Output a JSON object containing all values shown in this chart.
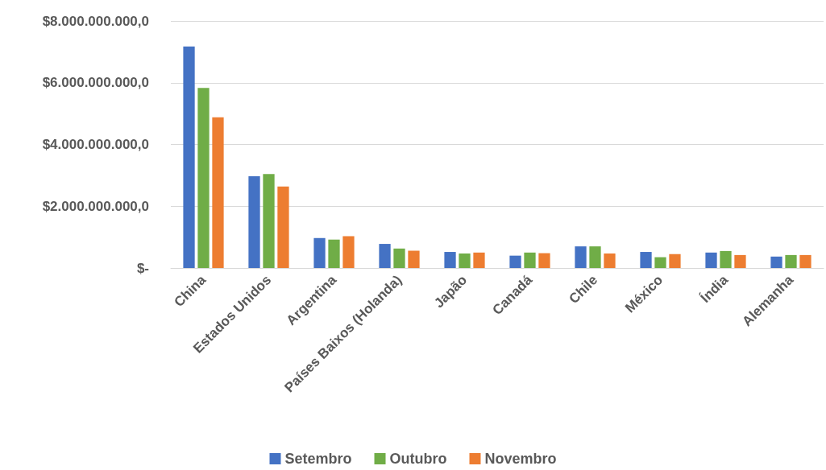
{
  "chart_data": {
    "type": "bar",
    "categories": [
      "China",
      "Estados Unidos",
      "Argentina",
      "Países Baixos (Holanda)",
      "Japão",
      "Canadá",
      "Chile",
      "México",
      "Índia",
      "Alemanha"
    ],
    "series": [
      {
        "name": "Setembro",
        "color": "#4472c4",
        "values": [
          7170000000,
          2970000000,
          970000000,
          780000000,
          520000000,
          400000000,
          700000000,
          520000000,
          500000000,
          370000000
        ]
      },
      {
        "name": "Outubro",
        "color": "#70ad47",
        "values": [
          5830000000,
          3040000000,
          920000000,
          630000000,
          470000000,
          500000000,
          700000000,
          350000000,
          550000000,
          420000000
        ]
      },
      {
        "name": "Novembro",
        "color": "#ed7d31",
        "values": [
          4880000000,
          2640000000,
          1030000000,
          560000000,
          500000000,
          480000000,
          470000000,
          450000000,
          420000000,
          420000000
        ]
      }
    ],
    "ylim": [
      0,
      8000000000
    ],
    "yticks": [
      {
        "value": 0,
        "label": "$-"
      },
      {
        "value": 2000000000,
        "label": "$2.000.000.000,0"
      },
      {
        "value": 4000000000,
        "label": "$4.000.000.000,0"
      },
      {
        "value": 6000000000,
        "label": "$6.000.000.000,0"
      },
      {
        "value": 8000000000,
        "label": "$8.000.000.000,0"
      }
    ],
    "grid": "y",
    "legend": "bottom"
  }
}
